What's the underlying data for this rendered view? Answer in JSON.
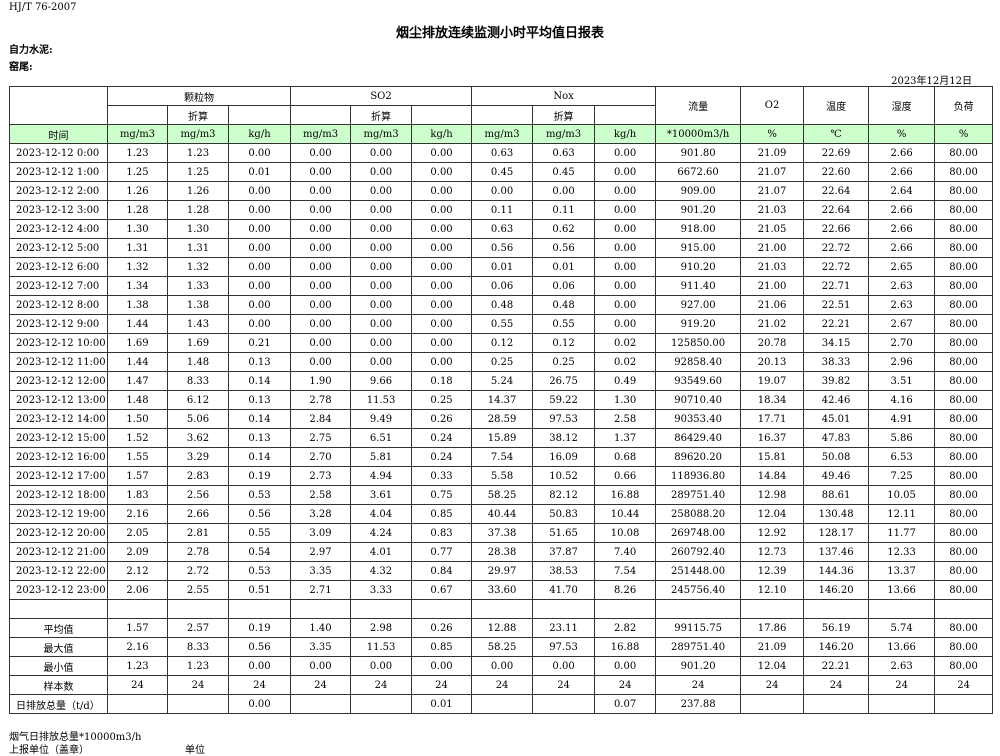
{
  "header": {
    "code": "HJ/T  76-2007",
    "title": "烟尘排放连续监测小时平均值日报表",
    "company": "自力水泥:",
    "unit": "窑尾:",
    "date": "2023年12月12日"
  },
  "table": {
    "groups": [
      "颗粒物",
      "SO2",
      "Nox",
      "流量",
      "O2",
      "温度",
      "湿度",
      "负荷"
    ],
    "converted": [
      "折算",
      "折算",
      "折算"
    ],
    "units": [
      "时间",
      "mg/m3",
      "mg/m3",
      "kg/h",
      "mg/m3",
      "mg/m3",
      "kg/h",
      "mg/m3",
      "mg/m3",
      "kg/h",
      "*10000m3/h",
      "%",
      "℃",
      "%",
      "%"
    ],
    "rows": [
      [
        "2023-12-12 0:00",
        "1.23",
        "1.23",
        "0.00",
        "0.00",
        "0.00",
        "0.00",
        "0.63",
        "0.63",
        "0.00",
        "901.80",
        "21.09",
        "22.69",
        "2.66",
        "80.00"
      ],
      [
        "2023-12-12 1:00",
        "1.25",
        "1.25",
        "0.01",
        "0.00",
        "0.00",
        "0.00",
        "0.45",
        "0.45",
        "0.00",
        "6672.60",
        "21.07",
        "22.60",
        "2.66",
        "80.00"
      ],
      [
        "2023-12-12 2:00",
        "1.26",
        "1.26",
        "0.00",
        "0.00",
        "0.00",
        "0.00",
        "0.00",
        "0.00",
        "0.00",
        "909.00",
        "21.07",
        "22.64",
        "2.64",
        "80.00"
      ],
      [
        "2023-12-12 3:00",
        "1.28",
        "1.28",
        "0.00",
        "0.00",
        "0.00",
        "0.00",
        "0.11",
        "0.11",
        "0.00",
        "901.20",
        "21.03",
        "22.64",
        "2.66",
        "80.00"
      ],
      [
        "2023-12-12 4:00",
        "1.30",
        "1.30",
        "0.00",
        "0.00",
        "0.00",
        "0.00",
        "0.63",
        "0.62",
        "0.00",
        "918.00",
        "21.05",
        "22.66",
        "2.66",
        "80.00"
      ],
      [
        "2023-12-12 5:00",
        "1.31",
        "1.31",
        "0.00",
        "0.00",
        "0.00",
        "0.00",
        "0.56",
        "0.56",
        "0.00",
        "915.00",
        "21.00",
        "22.72",
        "2.66",
        "80.00"
      ],
      [
        "2023-12-12 6:00",
        "1.32",
        "1.32",
        "0.00",
        "0.00",
        "0.00",
        "0.00",
        "0.01",
        "0.01",
        "0.00",
        "910.20",
        "21.03",
        "22.72",
        "2.65",
        "80.00"
      ],
      [
        "2023-12-12 7:00",
        "1.34",
        "1.33",
        "0.00",
        "0.00",
        "0.00",
        "0.00",
        "0.06",
        "0.06",
        "0.00",
        "911.40",
        "21.00",
        "22.71",
        "2.63",
        "80.00"
      ],
      [
        "2023-12-12 8:00",
        "1.38",
        "1.38",
        "0.00",
        "0.00",
        "0.00",
        "0.00",
        "0.48",
        "0.48",
        "0.00",
        "927.00",
        "21.06",
        "22.51",
        "2.63",
        "80.00"
      ],
      [
        "2023-12-12 9:00",
        "1.44",
        "1.43",
        "0.00",
        "0.00",
        "0.00",
        "0.00",
        "0.55",
        "0.55",
        "0.00",
        "919.20",
        "21.02",
        "22.21",
        "2.67",
        "80.00"
      ],
      [
        "2023-12-12 10:00",
        "1.69",
        "1.69",
        "0.21",
        "0.00",
        "0.00",
        "0.00",
        "0.12",
        "0.12",
        "0.02",
        "125850.00",
        "20.78",
        "34.15",
        "2.70",
        "80.00"
      ],
      [
        "2023-12-12 11:00",
        "1.44",
        "1.48",
        "0.13",
        "0.00",
        "0.00",
        "0.00",
        "0.25",
        "0.25",
        "0.02",
        "92858.40",
        "20.13",
        "38.33",
        "2.96",
        "80.00"
      ],
      [
        "2023-12-12 12:00",
        "1.47",
        "8.33",
        "0.14",
        "1.90",
        "9.66",
        "0.18",
        "5.24",
        "26.75",
        "0.49",
        "93549.60",
        "19.07",
        "39.82",
        "3.51",
        "80.00"
      ],
      [
        "2023-12-12 13:00",
        "1.48",
        "6.12",
        "0.13",
        "2.78",
        "11.53",
        "0.25",
        "14.37",
        "59.22",
        "1.30",
        "90710.40",
        "18.34",
        "42.46",
        "4.16",
        "80.00"
      ],
      [
        "2023-12-12 14:00",
        "1.50",
        "5.06",
        "0.14",
        "2.84",
        "9.49",
        "0.26",
        "28.59",
        "97.53",
        "2.58",
        "90353.40",
        "17.71",
        "45.01",
        "4.91",
        "80.00"
      ],
      [
        "2023-12-12 15:00",
        "1.52",
        "3.62",
        "0.13",
        "2.75",
        "6.51",
        "0.24",
        "15.89",
        "38.12",
        "1.37",
        "86429.40",
        "16.37",
        "47.83",
        "5.86",
        "80.00"
      ],
      [
        "2023-12-12 16:00",
        "1.55",
        "3.29",
        "0.14",
        "2.70",
        "5.81",
        "0.24",
        "7.54",
        "16.09",
        "0.68",
        "89620.20",
        "15.81",
        "50.08",
        "6.53",
        "80.00"
      ],
      [
        "2023-12-12 17:00",
        "1.57",
        "2.83",
        "0.19",
        "2.73",
        "4.94",
        "0.33",
        "5.58",
        "10.52",
        "0.66",
        "118936.80",
        "14.84",
        "49.46",
        "7.25",
        "80.00"
      ],
      [
        "2023-12-12 18:00",
        "1.83",
        "2.56",
        "0.53",
        "2.58",
        "3.61",
        "0.75",
        "58.25",
        "82.12",
        "16.88",
        "289751.40",
        "12.98",
        "88.61",
        "10.05",
        "80.00"
      ],
      [
        "2023-12-12 19:00",
        "2.16",
        "2.66",
        "0.56",
        "3.28",
        "4.04",
        "0.85",
        "40.44",
        "50.83",
        "10.44",
        "258088.20",
        "12.04",
        "130.48",
        "12.11",
        "80.00"
      ],
      [
        "2023-12-12 20:00",
        "2.05",
        "2.81",
        "0.55",
        "3.09",
        "4.24",
        "0.83",
        "37.38",
        "51.65",
        "10.08",
        "269748.00",
        "12.92",
        "128.17",
        "11.77",
        "80.00"
      ],
      [
        "2023-12-12 21:00",
        "2.09",
        "2.78",
        "0.54",
        "2.97",
        "4.01",
        "0.77",
        "28.38",
        "37.87",
        "7.40",
        "260792.40",
        "12.73",
        "137.46",
        "12.33",
        "80.00"
      ],
      [
        "2023-12-12 22:00",
        "2.12",
        "2.72",
        "0.53",
        "3.35",
        "4.32",
        "0.84",
        "29.97",
        "38.53",
        "7.54",
        "251448.00",
        "12.39",
        "144.36",
        "13.37",
        "80.00"
      ],
      [
        "2023-12-12 23:00",
        "2.06",
        "2.55",
        "0.51",
        "2.71",
        "3.33",
        "0.67",
        "33.60",
        "41.70",
        "8.26",
        "245756.40",
        "12.10",
        "146.20",
        "13.66",
        "80.00"
      ]
    ],
    "summary": [
      [
        "平均值",
        "1.57",
        "2.57",
        "0.19",
        "1.40",
        "2.98",
        "0.26",
        "12.88",
        "23.11",
        "2.82",
        "99115.75",
        "17.86",
        "56.19",
        "5.74",
        "80.00"
      ],
      [
        "最大值",
        "2.16",
        "8.33",
        "0.56",
        "3.35",
        "11.53",
        "0.85",
        "58.25",
        "97.53",
        "16.88",
        "289751.40",
        "21.09",
        "146.20",
        "13.66",
        "80.00"
      ],
      [
        "最小值",
        "1.23",
        "1.23",
        "0.00",
        "0.00",
        "0.00",
        "0.00",
        "0.00",
        "0.00",
        "0.00",
        "901.20",
        "12.04",
        "22.21",
        "2.63",
        "80.00"
      ],
      [
        "样本数",
        24,
        24,
        24,
        24,
        24,
        24,
        24,
        24,
        24,
        24,
        24,
        24,
        24,
        24
      ]
    ],
    "total": {
      "label": "日排放总量（t/d）",
      "pm_kg": "0.00",
      "so2_kg": "0.01",
      "nox_kg": "0.07",
      "flow": "237.88"
    }
  },
  "footer": {
    "volume": "烟气日排放总量*10000m3/h",
    "reporter": "上报单位（盖章）",
    "unit": "单位"
  }
}
